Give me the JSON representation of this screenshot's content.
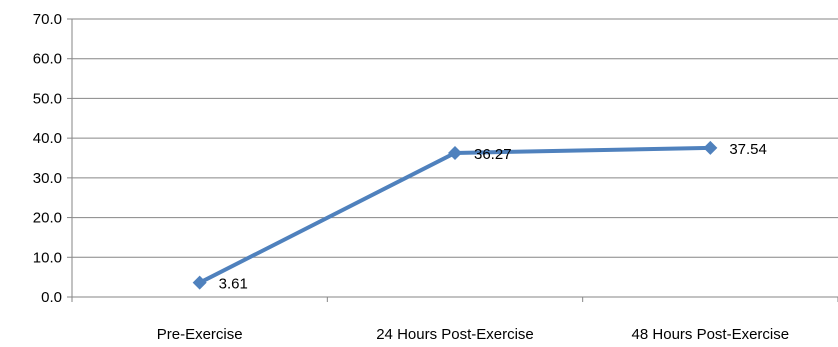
{
  "chart_data": {
    "type": "line",
    "categories": [
      "Pre-Exercise",
      "24 Hours Post-Exercise",
      "48 Hours Post-Exercise"
    ],
    "values": [
      3.61,
      36.27,
      37.54
    ],
    "data_labels": [
      "3.61",
      "36.27",
      "37.54"
    ],
    "yticks": [
      "0.0",
      "10.0",
      "20.0",
      "30.0",
      "40.0",
      "50.0",
      "60.0",
      "70.0"
    ],
    "ylim": [
      0,
      70
    ],
    "grid": true,
    "legend": "none",
    "series_color": "#4F81BD"
  }
}
